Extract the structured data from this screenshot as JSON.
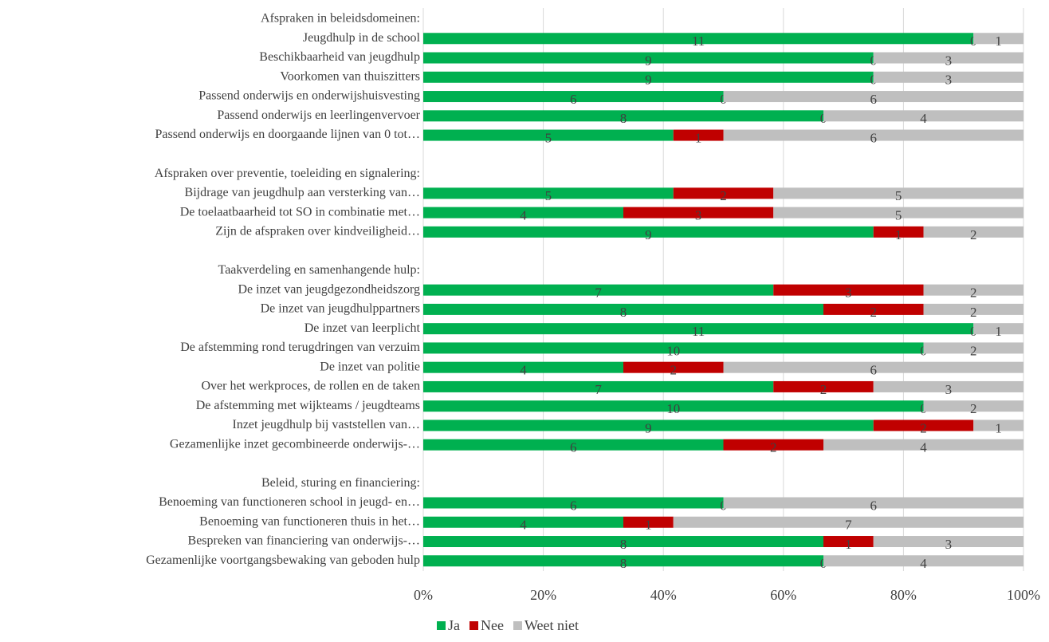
{
  "chart_data": {
    "type": "bar",
    "orientation": "horizontal",
    "stack": "percent",
    "categories": [
      "Afspraken in beleidsdomeinen:",
      "Jeugdhulp in de school",
      "Beschikbaarheid van jeugdhulp",
      "Voorkomen van thuiszitters",
      "Passend onderwijs en onderwijshuisvesting",
      "Passend onderwijs en leerlingenvervoer",
      "Passend onderwijs en doorgaande lijnen van 0 tot…",
      null,
      "Afspraken over preventie, toeleiding en signalering:",
      "Bijdrage van jeugdhulp aan versterking van…",
      "De toelaatbaarheid tot SO in combinatie met…",
      "Zijn de afspraken over kindveiligheid…",
      null,
      "Taakverdeling en samenhangende hulp:",
      "De inzet van jeugdgezondheidszorg",
      "De inzet van jeugdhulppartners",
      "De inzet van leerplicht",
      "De afstemming rond terugdringen van verzuim",
      "De inzet van politie",
      "Over het werkproces, de rollen en de taken",
      "De afstemming met wijkteams / jeugdteams",
      "Inzet jeugdhulp bij vaststellen van…",
      "Gezamenlijke inzet gecombineerde onderwijs-…",
      null,
      "Beleid, sturing en financiering:",
      "Benoeming van functioneren school in jeugd- en…",
      "Benoeming van functioneren thuis in het…",
      "Bespreken van financiering van onderwijs-…",
      "Gezamenlijke voortgangsbewaking van geboden hulp"
    ],
    "series": [
      {
        "name": "Ja",
        "color": "#00b050",
        "values": [
          null,
          11,
          9,
          9,
          6,
          8,
          5,
          null,
          null,
          5,
          4,
          9,
          null,
          null,
          7,
          8,
          11,
          10,
          4,
          7,
          10,
          9,
          6,
          null,
          null,
          6,
          4,
          8,
          8
        ]
      },
      {
        "name": "Nee",
        "color": "#c00000",
        "values": [
          null,
          0,
          0,
          0,
          0,
          0,
          1,
          null,
          null,
          2,
          3,
          1,
          null,
          null,
          3,
          2,
          0,
          0,
          2,
          2,
          0,
          2,
          2,
          null,
          null,
          0,
          1,
          1,
          0
        ]
      },
      {
        "name": "Weet niet",
        "color": "#bfbfbf",
        "values": [
          null,
          1,
          3,
          3,
          6,
          4,
          6,
          null,
          null,
          5,
          5,
          2,
          null,
          null,
          2,
          2,
          1,
          2,
          6,
          3,
          2,
          1,
          4,
          null,
          null,
          6,
          7,
          3,
          4
        ]
      }
    ],
    "xlim": [
      0,
      100
    ],
    "xticks": [
      {
        "value": 0,
        "label": "0%"
      },
      {
        "value": 20,
        "label": "20%"
      },
      {
        "value": 40,
        "label": "40%"
      },
      {
        "value": 60,
        "label": "60%"
      },
      {
        "value": 80,
        "label": "80%"
      },
      {
        "value": 100,
        "label": "100%"
      }
    ],
    "grid": true,
    "legend": "bottom"
  }
}
